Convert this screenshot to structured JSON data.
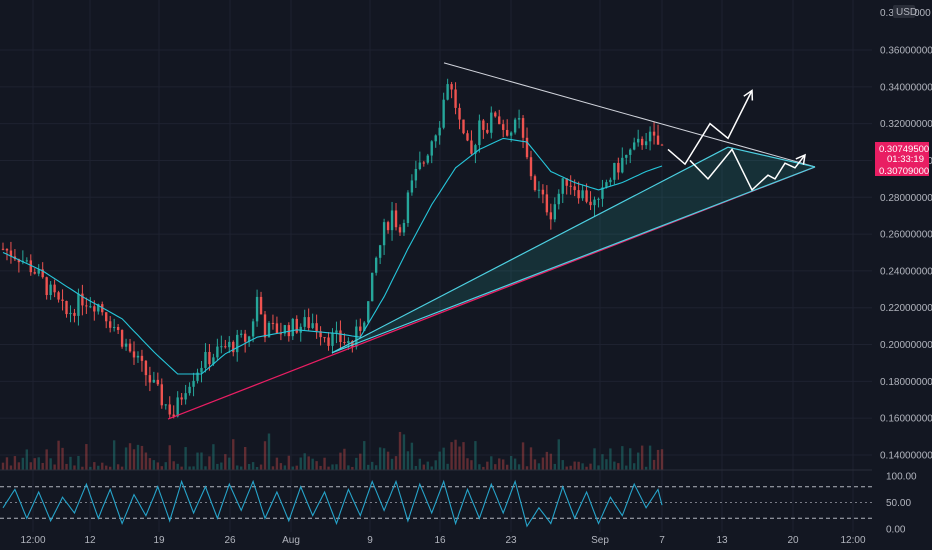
{
  "chart_data": {
    "type": "candlestick",
    "currency": "USD",
    "price_axis": {
      "ticks": [
        "0.14000000",
        "0.16000000",
        "0.18000000",
        "0.20000000",
        "0.22000000",
        "0.24000000",
        "0.26000000",
        "0.28000000",
        "0.30000000",
        "0.32000000",
        "0.34000000",
        "0.36000000"
      ],
      "top_partial": "0.3",
      "top_partial_right": "000",
      "ylim": [
        0.136,
        0.38
      ]
    },
    "time_axis": {
      "labels": [
        "12:00",
        "12",
        "19",
        "26",
        "Aug",
        "9",
        "16",
        "23",
        "Sep",
        "7",
        "13",
        "20",
        "12:00"
      ]
    },
    "last_price": {
      "value": "0.30749500",
      "countdown": "01:33:19",
      "color": "#e91e63"
    },
    "ma_value": {
      "value": "0.30709000",
      "color": "#e91e63"
    },
    "oscillator": {
      "ticks": [
        "100.00",
        "50.00",
        "0.00"
      ],
      "upper_band": 80,
      "lower_band": 20,
      "ylim": [
        -8,
        108
      ]
    },
    "series": [
      {
        "name": "close",
        "values_anchor": [
          [
            0,
            0.252
          ],
          [
            4,
            0.248
          ],
          [
            8,
            0.24
          ],
          [
            12,
            0.228
          ],
          [
            16,
            0.216
          ],
          [
            20,
            0.225
          ],
          [
            24,
            0.222
          ],
          [
            28,
            0.21
          ],
          [
            32,
            0.196
          ],
          [
            36,
            0.184
          ],
          [
            40,
            0.17
          ],
          [
            43,
            0.162
          ],
          [
            46,
            0.178
          ],
          [
            50,
            0.19
          ],
          [
            54,
            0.196
          ],
          [
            58,
            0.2
          ],
          [
            62,
            0.204
          ],
          [
            64,
            0.225
          ],
          [
            66,
            0.208
          ],
          [
            70,
            0.208
          ],
          [
            74,
            0.21
          ],
          [
            78,
            0.212
          ],
          [
            82,
            0.204
          ],
          [
            86,
            0.202
          ],
          [
            88,
            0.2
          ],
          [
            90,
            0.21
          ],
          [
            92,
            0.222
          ],
          [
            94,
            0.246
          ],
          [
            96,
            0.262
          ],
          [
            98,
            0.272
          ],
          [
            100,
            0.262
          ],
          [
            102,
            0.28
          ],
          [
            104,
            0.292
          ],
          [
            106,
            0.3
          ],
          [
            108,
            0.312
          ],
          [
            110,
            0.322
          ],
          [
            112,
            0.344
          ],
          [
            114,
            0.33
          ],
          [
            116,
            0.31
          ],
          [
            118,
            0.302
          ],
          [
            120,
            0.322
          ],
          [
            122,
            0.318
          ],
          [
            124,
            0.326
          ],
          [
            126,
            0.318
          ],
          [
            128,
            0.316
          ],
          [
            130,
            0.32
          ],
          [
            132,
            0.3
          ],
          [
            134,
            0.286
          ],
          [
            136,
            0.278
          ],
          [
            138,
            0.272
          ],
          [
            140,
            0.282
          ],
          [
            142,
            0.29
          ],
          [
            144,
            0.286
          ],
          [
            146,
            0.282
          ],
          [
            148,
            0.278
          ],
          [
            150,
            0.275
          ],
          [
            152,
            0.288
          ],
          [
            154,
            0.294
          ],
          [
            156,
            0.3
          ],
          [
            158,
            0.304
          ],
          [
            160,
            0.308
          ],
          [
            162,
            0.314
          ],
          [
            164,
            0.31
          ],
          [
            166,
            0.307
          ]
        ]
      },
      {
        "name": "ema",
        "values_anchor": [
          [
            0,
            0.25
          ],
          [
            10,
            0.24
          ],
          [
            20,
            0.226
          ],
          [
            30,
            0.214
          ],
          [
            38,
            0.196
          ],
          [
            44,
            0.184
          ],
          [
            50,
            0.184
          ],
          [
            56,
            0.195
          ],
          [
            64,
            0.204
          ],
          [
            74,
            0.208
          ],
          [
            84,
            0.206
          ],
          [
            90,
            0.204
          ],
          [
            96,
            0.226
          ],
          [
            102,
            0.252
          ],
          [
            108,
            0.276
          ],
          [
            114,
            0.296
          ],
          [
            120,
            0.306
          ],
          [
            126,
            0.312
          ],
          [
            132,
            0.31
          ],
          [
            138,
            0.294
          ],
          [
            144,
            0.288
          ],
          [
            150,
            0.284
          ],
          [
            156,
            0.288
          ],
          [
            162,
            0.294
          ],
          [
            166,
            0.297
          ]
        ]
      },
      {
        "name": "oscillator",
        "values_anchor": [
          [
            0,
            40
          ],
          [
            3,
            75
          ],
          [
            6,
            20
          ],
          [
            9,
            70
          ],
          [
            12,
            15
          ],
          [
            15,
            60
          ],
          [
            18,
            30
          ],
          [
            21,
            85
          ],
          [
            24,
            20
          ],
          [
            27,
            75
          ],
          [
            30,
            10
          ],
          [
            33,
            65
          ],
          [
            36,
            25
          ],
          [
            39,
            80
          ],
          [
            42,
            15
          ],
          [
            45,
            90
          ],
          [
            48,
            30
          ],
          [
            51,
            80
          ],
          [
            54,
            20
          ],
          [
            57,
            85
          ],
          [
            60,
            35
          ],
          [
            63,
            90
          ],
          [
            66,
            20
          ],
          [
            69,
            70
          ],
          [
            72,
            15
          ],
          [
            75,
            80
          ],
          [
            78,
            25
          ],
          [
            81,
            70
          ],
          [
            84,
            10
          ],
          [
            87,
            75
          ],
          [
            90,
            25
          ],
          [
            93,
            90
          ],
          [
            96,
            35
          ],
          [
            99,
            90
          ],
          [
            102,
            15
          ],
          [
            105,
            85
          ],
          [
            108,
            30
          ],
          [
            111,
            90
          ],
          [
            114,
            10
          ],
          [
            117,
            75
          ],
          [
            120,
            20
          ],
          [
            123,
            85
          ],
          [
            126,
            30
          ],
          [
            129,
            90
          ],
          [
            132,
            5
          ],
          [
            135,
            40
          ],
          [
            138,
            10
          ],
          [
            141,
            80
          ],
          [
            144,
            20
          ],
          [
            147,
            70
          ],
          [
            150,
            10
          ],
          [
            153,
            60
          ],
          [
            156,
            25
          ],
          [
            159,
            85
          ],
          [
            162,
            40
          ],
          [
            165,
            75
          ],
          [
            166,
            45
          ]
        ]
      }
    ]
  }
}
